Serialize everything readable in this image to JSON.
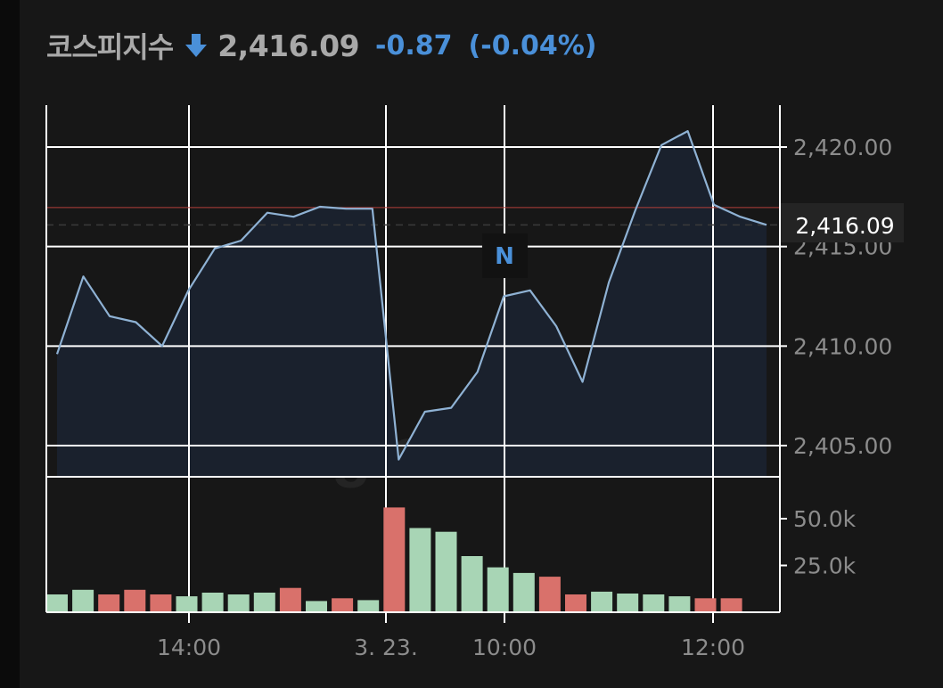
{
  "header": {
    "title": "코스피지수",
    "direction_icon": "down-arrow-icon",
    "price": "2,416.09",
    "change": "-0.87",
    "change_pct": "(-0.04%)"
  },
  "colors": {
    "line": "#8fb2d4",
    "area": "#1a212d",
    "up_bar": "#a8d5b5",
    "down_bar": "#d9716b",
    "down_text": "#4a90d9",
    "grid": "#ffffff",
    "prev_close_line": "#b3403a"
  },
  "watermark": "Investing.com",
  "news_marker": "N",
  "chart_data": {
    "type": "line",
    "price_axis": {
      "ylim": [
        2403.5,
        2422.0
      ],
      "ticks": [
        "2,420.00",
        "2,415.00",
        "2,410.00",
        "2,405.00"
      ],
      "tick_values": [
        2420,
        2415,
        2410,
        2405
      ]
    },
    "volume_axis": {
      "ylim": [
        0,
        60000
      ],
      "ticks": [
        "50.0k",
        "25.0k"
      ],
      "tick_values": [
        50000,
        25000
      ]
    },
    "x_tick_labels": [
      {
        "label": "14:00",
        "index": 5
      },
      {
        "label": "3. 23.",
        "index": 13
      },
      {
        "label": "10:00",
        "index": 18
      },
      {
        "label": "12:00",
        "index": 26
      }
    ],
    "prev_close": 2416.96,
    "last_price_label": "2,416.09",
    "last_price": 2416.09,
    "price_series": [
      2409.6,
      2413.5,
      2411.5,
      2411.2,
      2410.0,
      2412.8,
      2414.9,
      2415.3,
      2416.7,
      2416.5,
      2417.0,
      2416.9,
      2416.9,
      2404.3,
      2406.7,
      2406.9,
      2408.7,
      2412.5,
      2412.8,
      2411.0,
      2408.2,
      2413.2,
      2416.8,
      2420.1,
      2420.8,
      2417.1,
      2416.5,
      2416.09
    ],
    "volume_bars": [
      {
        "v": 9500,
        "up": true
      },
      {
        "v": 12000,
        "up": true
      },
      {
        "v": 9500,
        "up": false
      },
      {
        "v": 12000,
        "up": false
      },
      {
        "v": 9500,
        "up": false
      },
      {
        "v": 8500,
        "up": true
      },
      {
        "v": 10500,
        "up": true
      },
      {
        "v": 9500,
        "up": true
      },
      {
        "v": 10500,
        "up": true
      },
      {
        "v": 13000,
        "up": false
      },
      {
        "v": 6000,
        "up": true
      },
      {
        "v": 7500,
        "up": false
      },
      {
        "v": 6500,
        "up": true
      },
      {
        "v": 56000,
        "up": false
      },
      {
        "v": 45000,
        "up": true
      },
      {
        "v": 43000,
        "up": true
      },
      {
        "v": 30000,
        "up": true
      },
      {
        "v": 24000,
        "up": true
      },
      {
        "v": 21000,
        "up": true
      },
      {
        "v": 19000,
        "up": false
      },
      {
        "v": 9500,
        "up": false
      },
      {
        "v": 11000,
        "up": true
      },
      {
        "v": 10000,
        "up": true
      },
      {
        "v": 9500,
        "up": true
      },
      {
        "v": 8500,
        "up": true
      },
      {
        "v": 7500,
        "up": false
      },
      {
        "v": 7500,
        "up": false
      }
    ]
  }
}
